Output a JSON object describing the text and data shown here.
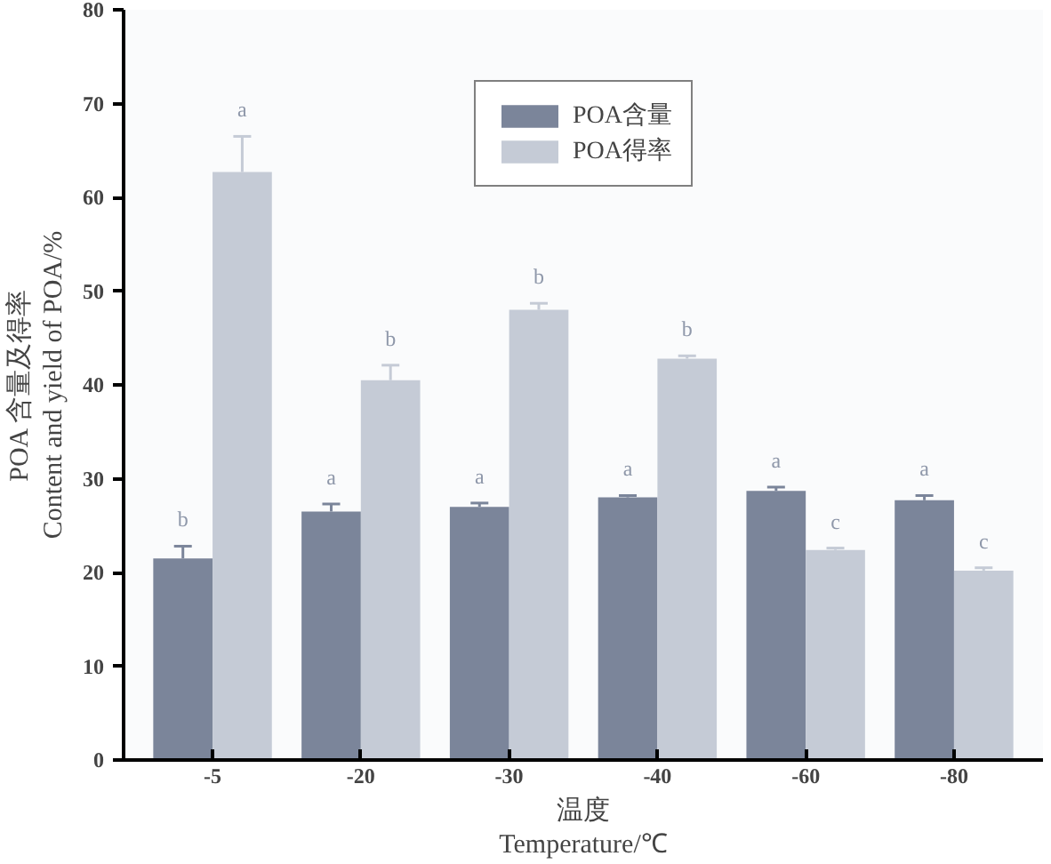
{
  "chart_data": {
    "type": "bar",
    "categories": [
      "-5",
      "-20",
      "-30",
      "-40",
      "-60",
      "-80"
    ],
    "series": [
      {
        "name": "POA含量",
        "color": "#7b859a",
        "values": [
          21.5,
          26.5,
          27,
          28,
          28.7,
          27.7
        ],
        "errors": [
          1.3,
          0.8,
          0.4,
          0.2,
          0.4,
          0.5
        ]
      },
      {
        "name": "POA得率",
        "color": "#c5cbd6",
        "values": [
          62.7,
          40.5,
          48,
          42.8,
          22.4,
          20.2
        ],
        "errors": [
          3.8,
          1.6,
          0.7,
          0.3,
          0.2,
          0.3
        ]
      }
    ],
    "xlabel": "温度\nTemperature/℃",
    "ylabel": "POA 含量及得率\nContent and yield of POA/%",
    "ylim": [
      0,
      80
    ],
    "yticks": [
      0,
      10,
      20,
      30,
      40,
      50,
      60,
      70,
      80
    ],
    "grid": false,
    "legend": "top",
    "annotations": [
      {
        "text": "b",
        "x": "-5",
        "y": 21.5
      },
      {
        "text": "a",
        "x": "-5",
        "y": 62.7
      },
      {
        "text": "a",
        "x": "-20",
        "y": 26.5
      },
      {
        "text": "b",
        "x": "-20",
        "y": 40.5
      },
      {
        "text": "a",
        "x": "-30",
        "y": 27
      },
      {
        "text": "b",
        "x": "-30",
        "y": 48
      },
      {
        "text": "a",
        "x": "-40",
        "y": 28
      },
      {
        "text": "b",
        "x": "-40",
        "y": 42.8
      },
      {
        "text": "a",
        "x": "-60",
        "y": 28.7
      },
      {
        "text": "c",
        "x": "-60",
        "y": 22.4
      },
      {
        "text": "a",
        "x": "-80",
        "y": 27.7
      },
      {
        "text": "c",
        "x": "-80",
        "y": 20.2
      }
    ]
  }
}
